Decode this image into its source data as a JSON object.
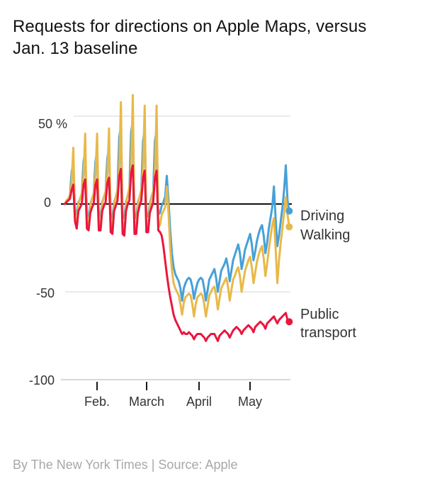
{
  "title_lines": [
    "Requests for directions on Apple Maps, versus",
    "Jan. 13 baseline"
  ],
  "footer": {
    "credit": "By The New York Times | Source: Apple"
  },
  "chart_data": {
    "type": "line",
    "title": "Requests for directions on Apple Maps, versus Jan. 13 baseline",
    "unit": "percent change vs Jan. 13 baseline",
    "grid": "horizontal gridlines at 50 and -50, black zero line",
    "legend_position": "labels right of line endpoints",
    "y_axis": {
      "range": [
        -100,
        65
      ],
      "ticks": [
        {
          "label": "50 %",
          "value": 50
        },
        {
          "label": "0",
          "value": 0
        },
        {
          "label": "-50",
          "value": -50
        },
        {
          "label": "-100",
          "value": -100
        }
      ]
    },
    "x_axis": {
      "start_label": "Jan. 13",
      "ticks": [
        {
          "label": "Feb.",
          "day": 19
        },
        {
          "label": "March",
          "day": 48
        },
        {
          "label": "April",
          "day": 79
        },
        {
          "label": "May",
          "day": 109
        }
      ]
    },
    "colors": {
      "grid": "#e3e3e3",
      "zero_line": "#121212",
      "axis_line": "#cccccc",
      "tick": "#1a1a1a"
    },
    "series": [
      {
        "id": "driving",
        "name": "Driving",
        "color": "#47a0d8",
        "values": [
          0,
          2,
          3,
          5,
          18,
          24,
          -4,
          -6,
          1,
          3,
          6,
          24,
          30,
          -5,
          -7,
          0,
          3,
          6,
          24,
          30,
          -6,
          -7,
          1,
          4,
          7,
          26,
          32,
          -6,
          -8,
          1,
          4,
          8,
          38,
          44,
          -7,
          -8,
          1,
          5,
          9,
          41,
          47,
          -7,
          -8,
          1,
          4,
          8,
          36,
          42,
          -7,
          -7,
          0,
          4,
          7,
          36,
          42,
          -6,
          -5,
          -1,
          1,
          4,
          16,
          2,
          -15,
          -28,
          -36,
          -40,
          -42,
          -44,
          -48,
          -55,
          -48,
          -45,
          -43,
          -42,
          -43,
          -47,
          -54,
          -49,
          -45,
          -43,
          -42,
          -43,
          -48,
          -55,
          -49,
          -43,
          -41,
          -39,
          -37,
          -42,
          -50,
          -44,
          -38,
          -36,
          -34,
          -31,
          -36,
          -44,
          -38,
          -32,
          -29,
          -26,
          -23,
          -28,
          -37,
          -32,
          -26,
          -23,
          -20,
          -17,
          -23,
          -32,
          -27,
          -21,
          -17,
          -14,
          -12,
          -18,
          -28,
          -22,
          -14,
          -8,
          -2,
          10,
          -8,
          -24,
          -18,
          -10,
          -2,
          8,
          22,
          2,
          -4
        ]
      },
      {
        "id": "walking",
        "name": "Walking",
        "color": "#e8b94a",
        "values": [
          0,
          2,
          3,
          5,
          12,
          32,
          -8,
          -10,
          0,
          3,
          6,
          16,
          40,
          -10,
          -12,
          -1,
          3,
          6,
          16,
          40,
          -11,
          -12,
          0,
          4,
          7,
          17,
          43,
          -12,
          -14,
          0,
          4,
          8,
          20,
          58,
          -14,
          -16,
          0,
          5,
          9,
          22,
          62,
          -15,
          -15,
          0,
          4,
          8,
          20,
          56,
          -14,
          -14,
          -1,
          3,
          7,
          18,
          56,
          -13,
          -12,
          -6,
          -4,
          -2,
          10,
          -5,
          -25,
          -38,
          -45,
          -48,
          -50,
          -52,
          -57,
          -63,
          -56,
          -53,
          -52,
          -51,
          -52,
          -57,
          -64,
          -57,
          -53,
          -52,
          -51,
          -52,
          -57,
          -64,
          -58,
          -52,
          -50,
          -48,
          -47,
          -52,
          -60,
          -54,
          -48,
          -46,
          -44,
          -42,
          -47,
          -55,
          -49,
          -43,
          -41,
          -38,
          -36,
          -41,
          -50,
          -44,
          -38,
          -35,
          -32,
          -30,
          -36,
          -45,
          -39,
          -33,
          -29,
          -26,
          -24,
          -31,
          -41,
          -34,
          -26,
          -19,
          -12,
          -8,
          -25,
          -45,
          -32,
          -22,
          -14,
          -5,
          4,
          -6,
          -13
        ]
      },
      {
        "id": "transit",
        "name": "Public transport",
        "color": "#e9173e",
        "values": [
          0,
          1,
          2,
          3,
          8,
          11,
          -10,
          -14,
          -4,
          -2,
          0,
          11,
          14,
          -14,
          -15,
          -5,
          -2,
          0,
          11,
          14,
          -15,
          -15,
          -4,
          -1,
          1,
          12,
          15,
          -16,
          -17,
          -4,
          -1,
          2,
          16,
          20,
          -17,
          -18,
          -4,
          0,
          2,
          18,
          22,
          -17,
          -17,
          -5,
          -1,
          2,
          15,
          19,
          -16,
          -16,
          -5,
          -2,
          1,
          15,
          19,
          -15,
          -16,
          -18,
          -24,
          -32,
          -40,
          -47,
          -53,
          -58,
          -63,
          -66,
          -68,
          -70,
          -72,
          -74,
          -73,
          -74,
          -74,
          -73,
          -74,
          -75,
          -77,
          -75,
          -74,
          -74,
          -74,
          -75,
          -76,
          -78,
          -76,
          -75,
          -74,
          -74,
          -74,
          -76,
          -78,
          -75,
          -74,
          -73,
          -72,
          -73,
          -74,
          -76,
          -74,
          -72,
          -71,
          -70,
          -71,
          -72,
          -74,
          -72,
          -71,
          -70,
          -69,
          -70,
          -71,
          -73,
          -70,
          -69,
          -68,
          -67,
          -68,
          -69,
          -71,
          -68,
          -67,
          -66,
          -65,
          -64,
          -66,
          -68,
          -66,
          -65,
          -64,
          -63,
          -62,
          -66,
          -67
        ]
      }
    ]
  }
}
